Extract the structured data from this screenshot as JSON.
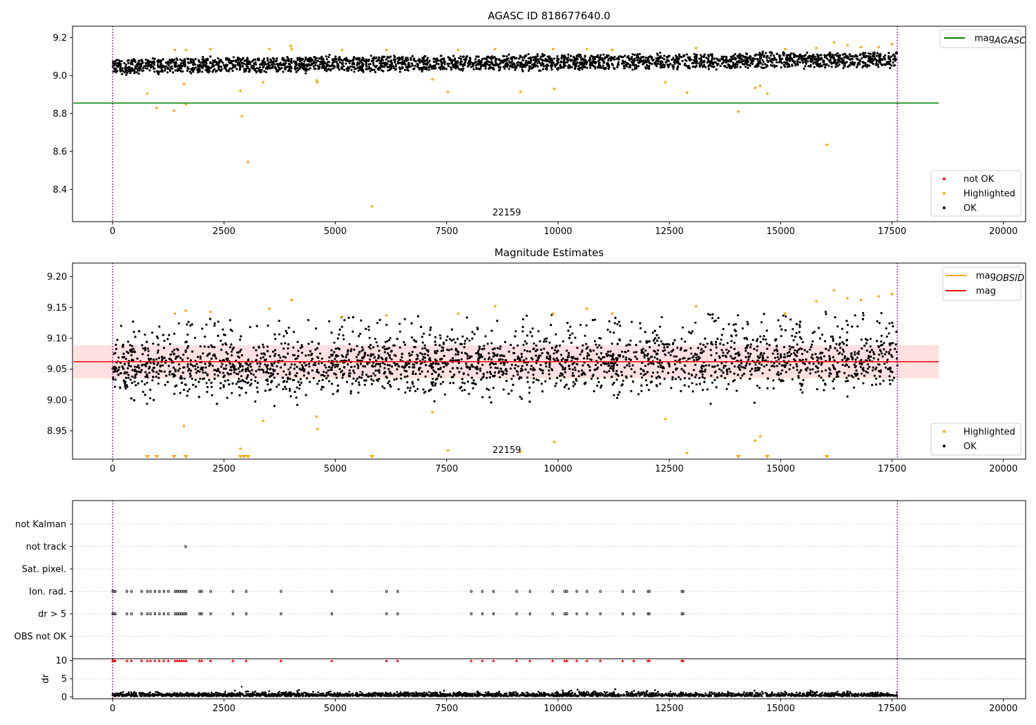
{
  "chart_data": [
    {
      "type": "scatter",
      "title": "AGASC ID 818677640.0",
      "xlim": [
        -900,
        20500
      ],
      "ylim": [
        8.23,
        9.26
      ],
      "x_ticks": [
        "0",
        "2500",
        "5000",
        "7500",
        "10000",
        "12500",
        "15000",
        "17500",
        "20000"
      ],
      "y_ticks": [
        "8.4",
        "8.6",
        "8.8",
        "9.0",
        "9.2"
      ],
      "annotation": "22159",
      "vlines": [
        0,
        17620
      ],
      "hline": {
        "label": "mag",
        "label_sub": "AGASC",
        "value": 8.855,
        "color": "#008000"
      },
      "legend_upper": [
        {
          "label": "mag",
          "sub": "AGASC",
          "color": "#008000"
        }
      ],
      "legend_lower": [
        {
          "label": "not OK",
          "color": "#ff0000"
        },
        {
          "label": "Highlighted",
          "color": "#ffa500"
        },
        {
          "label": "OK",
          "color": "#000000"
        }
      ],
      "series": [
        {
          "name": "OK",
          "color": "#000000",
          "x_range": [
            0,
            17620
          ],
          "center_start": 9.05,
          "center_end": 9.085,
          "spread": 0.035
        },
        {
          "name": "Highlighted",
          "color": "#ffa500",
          "points": [
            [
              780,
              8.905
            ],
            [
              990,
              8.83
            ],
            [
              1380,
              8.815
            ],
            [
              1400,
              9.135
            ],
            [
              1600,
              8.955
            ],
            [
              1650,
              8.848
            ],
            [
              1650,
              9.135
            ],
            [
              2200,
              9.14
            ],
            [
              2870,
              8.92
            ],
            [
              2900,
              8.785
            ],
            [
              3040,
              8.545
            ],
            [
              3380,
              8.965
            ],
            [
              3520,
              9.14
            ],
            [
              4000,
              9.155
            ],
            [
              4020,
              9.14
            ],
            [
              4580,
              8.975
            ],
            [
              4600,
              8.965
            ],
            [
              5150,
              9.135
            ],
            [
              5820,
              8.31
            ],
            [
              6150,
              9.135
            ],
            [
              7180,
              8.98
            ],
            [
              7530,
              8.915
            ],
            [
              7760,
              9.135
            ],
            [
              8590,
              9.14
            ],
            [
              9160,
              8.915
            ],
            [
              9890,
              9.14
            ],
            [
              9920,
              8.93
            ],
            [
              10650,
              9.14
            ],
            [
              11220,
              9.135
            ],
            [
              12410,
              8.965
            ],
            [
              12900,
              8.91
            ],
            [
              13100,
              9.145
            ],
            [
              14050,
              8.81
            ],
            [
              14430,
              8.935
            ],
            [
              14540,
              8.945
            ],
            [
              14700,
              8.905
            ],
            [
              15100,
              9.14
            ],
            [
              15800,
              9.145
            ],
            [
              16040,
              8.635
            ],
            [
              16200,
              9.175
            ],
            [
              16500,
              9.16
            ],
            [
              16800,
              9.15
            ],
            [
              17200,
              9.15
            ],
            [
              17500,
              9.165
            ]
          ]
        }
      ]
    },
    {
      "type": "scatter",
      "title": "Magnitude Estimates",
      "xlim": [
        -900,
        20500
      ],
      "ylim": [
        8.904,
        9.222
      ],
      "x_ticks": [
        "0",
        "2500",
        "5000",
        "7500",
        "10000",
        "12500",
        "15000",
        "17500",
        "20000"
      ],
      "y_ticks": [
        "8.95",
        "9.00",
        "9.05",
        "9.10",
        "9.15",
        "9.20"
      ],
      "annotation": "22159",
      "vlines": [
        0,
        17620
      ],
      "mag_line": {
        "value": 9.062,
        "band": [
          9.035,
          9.089
        ],
        "color": "#ff0000"
      },
      "legend_upper": [
        {
          "label": "mag",
          "sub": "OBSID",
          "color": "#ffa500"
        },
        {
          "label": "mag",
          "sub": "",
          "color": "#ff0000"
        }
      ],
      "legend_lower": [
        {
          "label": "Highlighted",
          "color": "#ffa500"
        },
        {
          "label": "OK",
          "color": "#000000"
        }
      ],
      "series": [
        {
          "name": "OK",
          "color": "#000000",
          "x_range": [
            0,
            17620
          ],
          "center_start": 9.05,
          "center_end": 9.065,
          "spread": 0.05
        },
        {
          "name": "Highlighted",
          "color": "#ffa500",
          "points": [
            [
              1400,
              9.14
            ],
            [
              1640,
              9.145
            ],
            [
              1600,
              8.958
            ],
            [
              2200,
              9.143
            ],
            [
              2870,
              8.921
            ],
            [
              3380,
              8.966
            ],
            [
              3520,
              9.148
            ],
            [
              4020,
              9.162
            ],
            [
              4580,
              8.973
            ],
            [
              4600,
              8.953
            ],
            [
              5150,
              9.135
            ],
            [
              6150,
              9.137
            ],
            [
              7180,
              8.98
            ],
            [
              7530,
              8.918
            ],
            [
              7760,
              9.14
            ],
            [
              8590,
              9.152
            ],
            [
              9160,
              8.916
            ],
            [
              9890,
              9.14
            ],
            [
              9920,
              8.932
            ],
            [
              10650,
              9.148
            ],
            [
              11220,
              9.14
            ],
            [
              12410,
              8.969
            ],
            [
              12900,
              8.914
            ],
            [
              13100,
              9.152
            ],
            [
              14430,
              8.934
            ],
            [
              14540,
              8.941
            ],
            [
              15100,
              9.14
            ],
            [
              15800,
              9.16
            ],
            [
              16200,
              9.178
            ],
            [
              16500,
              9.165
            ],
            [
              16800,
              9.162
            ],
            [
              17200,
              9.168
            ],
            [
              17500,
              9.172
            ]
          ]
        },
        {
          "name": "Highlighted-below",
          "color": "#ffa500",
          "marker": "triangle-down",
          "x": [
            780,
            990,
            1380,
            1650,
            2870,
            2950,
            3040,
            5820,
            14050,
            14700,
            16040
          ]
        }
      ]
    },
    {
      "type": "scatter",
      "xlim": [
        -900,
        20500
      ],
      "x_ticks": [
        "0",
        "2500",
        "5000",
        "7500",
        "10000",
        "12500",
        "15000",
        "17500",
        "20000"
      ],
      "flag_rows": [
        "not Kalman",
        "not track",
        "Sat. pixel.",
        "Ion. rad.",
        "dr > 5",
        "OBS not OK"
      ],
      "flag_points": {
        "not track": [
          1640
        ],
        "Ion. rad.": [
          0,
          30,
          60,
          320,
          420,
          650,
          780,
          850,
          950,
          1050,
          1150,
          1250,
          1400,
          1450,
          1500,
          1550,
          1600,
          1650,
          1950,
          2000,
          2200,
          2700,
          3000,
          3780,
          4920,
          6150,
          6400,
          8050,
          8300,
          8550,
          9070,
          9370,
          9880,
          10150,
          10200,
          10420,
          10650,
          10950,
          11450,
          11700,
          12020,
          12050,
          12780,
          12810
        ],
        "dr > 5": [
          0,
          30,
          60,
          320,
          420,
          650,
          780,
          850,
          950,
          1050,
          1150,
          1250,
          1400,
          1450,
          1500,
          1550,
          1600,
          1650,
          1950,
          2000,
          2200,
          2700,
          3000,
          3780,
          4920,
          6150,
          6400,
          8050,
          8300,
          8550,
          9070,
          9370,
          9880,
          10150,
          10200,
          10420,
          10650,
          10950,
          11450,
          11700,
          12020,
          12050,
          12780,
          12810
        ]
      },
      "dr_panel": {
        "ylabel": "dr",
        "ylim": [
          -0.5,
          10.5
        ],
        "y_ticks": [
          "0",
          "5",
          "10"
        ],
        "clipped_x": [
          0,
          30,
          60,
          320,
          420,
          650,
          780,
          850,
          950,
          1050,
          1150,
          1250,
          1400,
          1450,
          1500,
          1550,
          1600,
          1650,
          1950,
          2000,
          2200,
          2700,
          3000,
          3780,
          4920,
          6150,
          6400,
          8050,
          8300,
          8550,
          9070,
          9370,
          9880,
          10150,
          10200,
          10420,
          10650,
          10950,
          11450,
          11700,
          12020,
          12050,
          12780,
          12810
        ],
        "outlier": [
          [
            2900,
            2.8
          ]
        ],
        "x_range": [
          0,
          17620
        ]
      },
      "vlines": [
        0,
        17620
      ]
    }
  ]
}
